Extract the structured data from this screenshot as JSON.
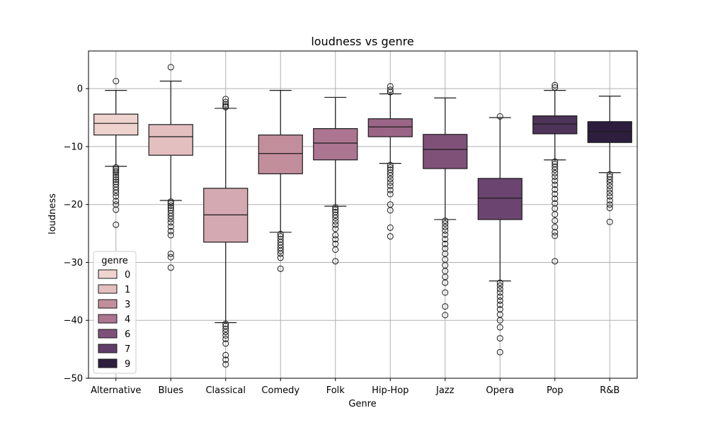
{
  "chart_data": {
    "type": "box",
    "title": "loudness vs genre",
    "xlabel": "Genre",
    "ylabel": "loudness",
    "ylim": [
      -50,
      6.5
    ],
    "yticks": [
      0,
      -10,
      -20,
      -30,
      -40,
      -50
    ],
    "ytick_labels": [
      "0",
      "−10",
      "−20",
      "−30",
      "−40",
      "−50"
    ],
    "grid": true,
    "legend": {
      "title": "genre",
      "position": "lower-left",
      "entries": [
        {
          "label": "0",
          "color": "#eed3cf"
        },
        {
          "label": "1",
          "color": "#e3bfc0"
        },
        {
          "label": "3",
          "color": "#c38e9c"
        },
        {
          "label": "4",
          "color": "#ac7590"
        },
        {
          "label": "6",
          "color": "#7f5179"
        },
        {
          "label": "7",
          "color": "#603d68"
        },
        {
          "label": "9",
          "color": "#2d1e3e"
        }
      ]
    },
    "boxes": [
      {
        "category": "Alternative",
        "color": "#eed3cf",
        "q1": -8.0,
        "median": -6.0,
        "q3": -4.4,
        "whisker_low": -13.4,
        "whisker_high": -0.3,
        "outliers": [
          1.3,
          -13.6,
          -13.9,
          -14.2,
          -14.5,
          -14.9,
          -15.3,
          -15.7,
          -16.1,
          -16.5,
          -17.0,
          -17.5,
          -18.0,
          -18.6,
          -19.4,
          -20.0,
          -20.9,
          -23.5
        ]
      },
      {
        "category": "Blues",
        "color": "#e3bfc0",
        "q1": -11.5,
        "median": -8.3,
        "q3": -6.2,
        "whisker_low": -19.3,
        "whisker_high": 1.3,
        "outliers": [
          3.7,
          -19.5,
          -19.8,
          -20.2,
          -20.6,
          -21.0,
          -21.5,
          -22.0,
          -22.5,
          -23.1,
          -23.8,
          -24.6,
          -25.3,
          -28.5,
          -29.1,
          -30.9
        ]
      },
      {
        "category": "Classical",
        "color": "#d4a9b2",
        "q1": -26.5,
        "median": -21.8,
        "q3": -17.2,
        "whisker_low": -40.4,
        "whisker_high": -3.4,
        "outliers": [
          -1.8,
          -2.3,
          -2.7,
          -3.0,
          -3.2,
          -40.6,
          -41.0,
          -41.5,
          -42.0,
          -42.6,
          -43.2,
          -44.0,
          -46.0,
          -46.8,
          -47.6
        ]
      },
      {
        "category": "Comedy",
        "color": "#c38e9c",
        "q1": -14.7,
        "median": -11.2,
        "q3": -8.0,
        "whisker_low": -24.8,
        "whisker_high": -0.3,
        "outliers": [
          -25.1,
          -25.5,
          -26.0,
          -26.5,
          -27.0,
          -27.5,
          -28.0,
          -28.5,
          -29.2,
          -31.1
        ]
      },
      {
        "category": "Folk",
        "color": "#ac7590",
        "q1": -12.3,
        "median": -9.4,
        "q3": -6.9,
        "whisker_low": -20.3,
        "whisker_high": -1.5,
        "outliers": [
          -20.5,
          -20.9,
          -21.3,
          -21.8,
          -22.3,
          -22.9,
          -23.5,
          -24.2,
          -25.3,
          -26.0,
          -26.8,
          -27.8,
          -29.8
        ]
      },
      {
        "category": "Hip-Hop",
        "color": "#9a6587",
        "q1": -8.3,
        "median": -6.6,
        "q3": -5.2,
        "whisker_low": -12.9,
        "whisker_high": -0.9,
        "outliers": [
          0.4,
          -0.2,
          -0.6,
          -13.2,
          -13.6,
          -14.0,
          -14.5,
          -15.0,
          -15.6,
          -16.2,
          -16.8,
          -17.5,
          -18.2,
          -20.0,
          -21.0,
          -24.0,
          -25.5
        ]
      },
      {
        "category": "Jazz",
        "color": "#7f5179",
        "q1": -13.8,
        "median": -10.5,
        "q3": -7.9,
        "whisker_low": -22.6,
        "whisker_high": -1.6,
        "outliers": [
          -22.8,
          -23.3,
          -23.9,
          -24.5,
          -25.2,
          -26.0,
          -26.8,
          -27.6,
          -28.5,
          -29.5,
          -30.5,
          -31.5,
          -32.5,
          -33.5,
          -35.2,
          -37.6,
          -39.1
        ]
      },
      {
        "category": "Opera",
        "color": "#6b4470",
        "q1": -22.6,
        "median": -18.9,
        "q3": -15.5,
        "whisker_low": -33.2,
        "whisker_high": -5.0,
        "outliers": [
          -4.8,
          -33.5,
          -34.0,
          -34.6,
          -35.2,
          -35.9,
          -36.6,
          -37.3,
          -38.1,
          -39.0,
          -40.0,
          -41.2,
          -43.1,
          -45.5
        ]
      },
      {
        "category": "Pop",
        "color": "#4e3458",
        "q1": -7.8,
        "median": -6.1,
        "q3": -4.7,
        "whisker_low": -12.3,
        "whisker_high": -0.3,
        "outliers": [
          0.6,
          0.2,
          -12.6,
          -13.0,
          -13.5,
          -14.0,
          -14.6,
          -15.2,
          -15.9,
          -16.6,
          -17.4,
          -18.2,
          -19.0,
          -19.8,
          -20.7,
          -21.7,
          -22.8,
          -23.9,
          -24.8,
          -25.4,
          -29.8
        ]
      },
      {
        "category": "R&B",
        "color": "#2d1e3e",
        "q1": -9.3,
        "median": -7.4,
        "q3": -5.7,
        "whisker_low": -14.5,
        "whisker_high": -1.3,
        "outliers": [
          -14.8,
          -15.2,
          -15.7,
          -16.2,
          -16.8,
          -17.4,
          -18.0,
          -18.6,
          -19.3,
          -20.0,
          -20.6,
          -23.0
        ]
      }
    ]
  }
}
